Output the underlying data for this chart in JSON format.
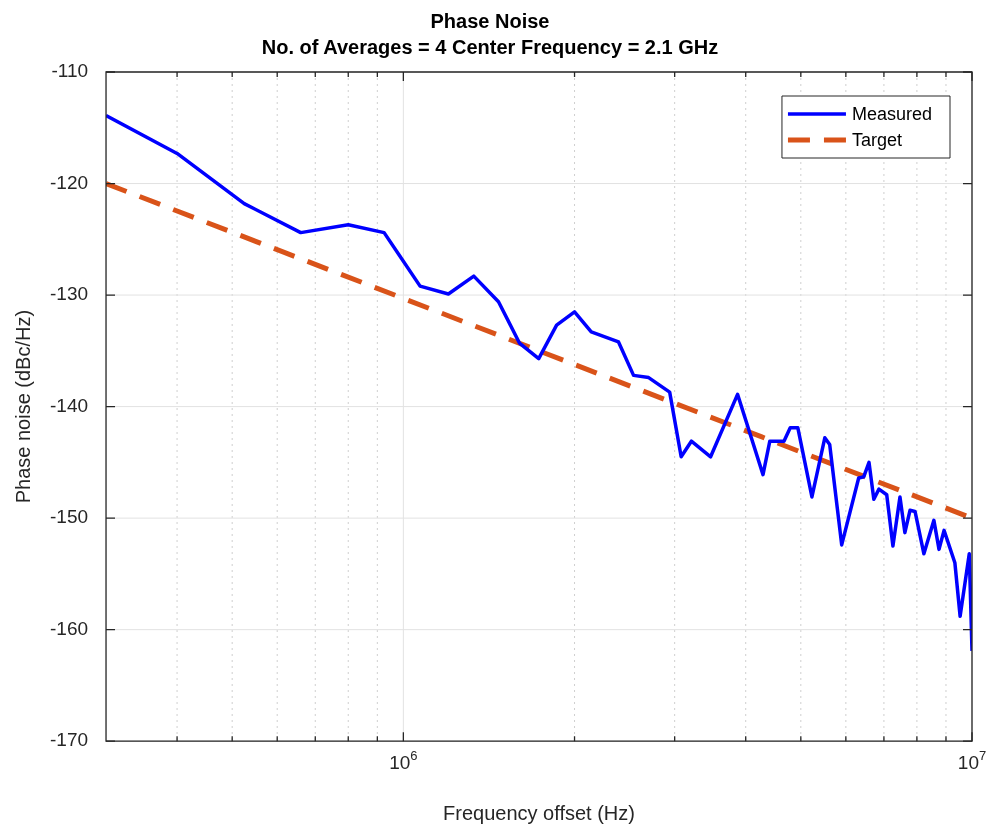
{
  "chart_data": {
    "type": "line",
    "title": "Phase Noise",
    "subtitle": "No. of Averages = 4 Center Frequency = 2.1 GHz",
    "xlabel": "Frequency offset (Hz)",
    "ylabel": "Phase noise (dBc/Hz)",
    "log": "x",
    "grid": true,
    "legend": "top right",
    "marker": "none",
    "xlim": [
      300000,
      10000000
    ],
    "xticks": [
      {
        "value": 400000,
        "label": null
      },
      {
        "value": 500000,
        "label": null
      },
      {
        "value": 600000,
        "label": null
      },
      {
        "value": 700000,
        "label": null
      },
      {
        "value": 800000,
        "label": null
      },
      {
        "value": 900000,
        "label": null
      },
      {
        "value": 1000000,
        "label": "10$^{6}$"
      },
      {
        "value": 2000000,
        "label": null
      },
      {
        "value": 3000000,
        "label": null
      },
      {
        "value": 4000000,
        "label": null
      },
      {
        "value": 5000000,
        "label": null
      },
      {
        "value": 6000000,
        "label": null
      },
      {
        "value": 7000000,
        "label": null
      },
      {
        "value": 8000000,
        "label": null
      },
      {
        "value": 9000000,
        "label": null
      },
      {
        "value": 10000000,
        "label": "10$^{7}$"
      }
    ],
    "ylim": [
      -170,
      -110
    ],
    "yticks": [
      -170,
      -160,
      -150,
      -140,
      -130,
      -120,
      -110
    ],
    "series": [
      {
        "name": "Measured",
        "color": "#0000ff",
        "line_style": "solid",
        "x": [
          300000,
          400000,
          525000,
          660000,
          800000,
          925000,
          1070000,
          1200000,
          1330000,
          1470000,
          1600000,
          1730000,
          1860000,
          2000000,
          2140000,
          2390000,
          2540000,
          2700000,
          2940000,
          3080000,
          3210000,
          3470000,
          3870000,
          4290000,
          4410000,
          4670000,
          4790000,
          4940000,
          5230000,
          5510000,
          5620000,
          5900000,
          6320000,
          6450000,
          6590000,
          6720000,
          6860000,
          7080000,
          7260000,
          7470000,
          7620000,
          7780000,
          7940000,
          8230000,
          8570000,
          8750000,
          8930000,
          9330000,
          9530000,
          9890000,
          10000000
        ],
        "values": [
          -113.9,
          -117.3,
          -121.8,
          -124.4,
          -123.7,
          -124.4,
          -129.2,
          -129.9,
          -128.3,
          -130.6,
          -134.3,
          -135.7,
          -132.7,
          -131.5,
          -133.3,
          -134.2,
          -137.2,
          -137.4,
          -138.7,
          -144.5,
          -143.1,
          -144.5,
          -138.9,
          -146.1,
          -143.1,
          -143.1,
          -141.9,
          -141.9,
          -148.1,
          -142.8,
          -143.4,
          -152.4,
          -146.4,
          -146.3,
          -145,
          -148.3,
          -147.4,
          -147.9,
          -152.5,
          -148.1,
          -151.3,
          -149.3,
          -149.4,
          -153.2,
          -150.2,
          -152.8,
          -151.1,
          -154,
          -158.8,
          -153.2,
          -161.9
        ]
      },
      {
        "name": "Target",
        "color": "#d95319",
        "line_style": "dashed",
        "x": [
          300000,
          10000000
        ],
        "values": [
          -120,
          -150
        ]
      }
    ]
  }
}
